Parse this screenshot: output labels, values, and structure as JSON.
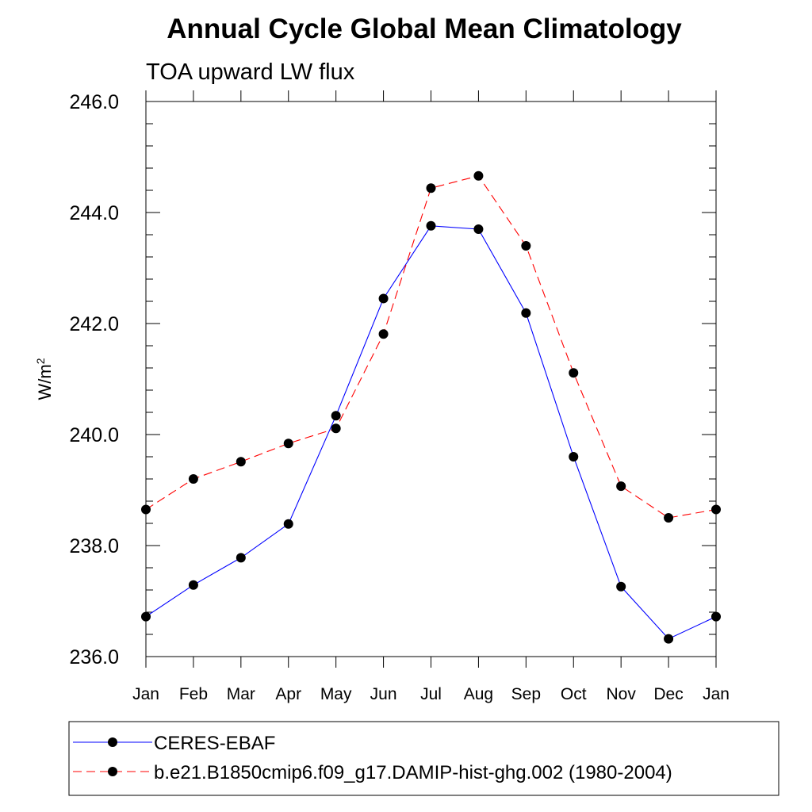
{
  "chart_data": {
    "type": "line",
    "title": "Annual Cycle Global Mean Climatology",
    "subtitle": "TOA upward LW flux",
    "ylabel_base": "W/m",
    "ylabel_sup": "2",
    "xlabel": "",
    "categories": [
      "Jan",
      "Feb",
      "Mar",
      "Apr",
      "May",
      "Jun",
      "Jul",
      "Aug",
      "Sep",
      "Oct",
      "Nov",
      "Dec",
      "Jan"
    ],
    "ylim": [
      236.0,
      246.0
    ],
    "yticks": [
      236.0,
      238.0,
      240.0,
      242.0,
      244.0,
      246.0
    ],
    "ytick_labels": [
      "236.0",
      "238.0",
      "240.0",
      "242.0",
      "244.0",
      "246.0"
    ],
    "grid": false,
    "legend_position": "bottom",
    "series": [
      {
        "name": "CERES-EBAF",
        "color": "#0000ff",
        "style": "solid",
        "values": [
          236.72,
          237.29,
          237.78,
          238.39,
          240.34,
          242.45,
          243.76,
          243.7,
          242.19,
          239.6,
          237.26,
          236.32,
          236.72
        ]
      },
      {
        "name": "b.e21.B1850cmip6.f09_g17.DAMIP-hist-ghg.002 (1980-2004)",
        "color": "#ff0000",
        "style": "dashed",
        "values": [
          238.65,
          239.2,
          239.51,
          239.84,
          240.11,
          241.81,
          244.44,
          244.66,
          243.4,
          241.11,
          239.07,
          238.5,
          238.65
        ]
      }
    ]
  }
}
